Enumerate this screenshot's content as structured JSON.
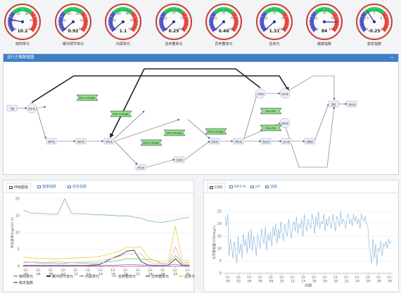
{
  "gauges": [
    {
      "label": "吸附单元",
      "value_text": "10.2",
      "value": 10.2,
      "max": 50,
      "ticks": [
        "10",
        "20",
        "30",
        "40",
        "0",
        "50"
      ]
    },
    {
      "label": "缓冲调节单元",
      "value_text": "0.92",
      "value": 0.92,
      "max": 50,
      "ticks": [
        "10",
        "20",
        "30",
        "40",
        "0",
        "50"
      ]
    },
    {
      "label": "内源单元",
      "value_text": "1.1",
      "value": 1.1,
      "max": 50,
      "ticks": [
        "10",
        "20",
        "30",
        "40",
        "0",
        "50"
      ]
    },
    {
      "label": "自养菌单元",
      "value_text": "0.25",
      "value": 0.25,
      "max": 100,
      "ticks": [
        "25",
        "50",
        "75",
        "0",
        "100"
      ]
    },
    {
      "label": "异养菌单元",
      "value_text": "0.46",
      "value": 0.46,
      "max": 100,
      "ticks": [
        "25",
        "50",
        "75",
        "0",
        "100"
      ]
    },
    {
      "label": "总单元",
      "value_text": "1.31",
      "value": 1.31,
      "max": 100,
      "ticks": [
        "25",
        "50",
        "75",
        "0",
        "100"
      ]
    },
    {
      "label": "健康指数",
      "value_text": "84",
      "value": 84,
      "max": 100,
      "ticks": [
        "25",
        "50",
        "75",
        "0",
        "100"
      ]
    },
    {
      "label": "稳定指数",
      "value_text": "-0.25",
      "value": -0.25,
      "min": -1,
      "max": 1,
      "ticks": [
        "-0.5",
        "0",
        "0.5",
        "-1",
        "1"
      ]
    }
  ],
  "colors": {
    "gauge_red": "#e8433a",
    "gauge_green": "#22c35a",
    "gauge_blue": "#4f55c7",
    "header": "#3f7fc6"
  },
  "process": {
    "title": "运行方案数据图",
    "minimize": "−",
    "nodes": [
      {
        "id": "n1",
        "label": "气源",
        "kind": "box"
      },
      {
        "id": "n2",
        "label": "进水池",
        "kind": "circle"
      },
      {
        "id": "n3",
        "label": "调节池",
        "kind": "box"
      },
      {
        "id": "n4",
        "label": "缺氧池",
        "kind": "box"
      },
      {
        "id": "n5",
        "label": "厌氧池",
        "kind": "box"
      },
      {
        "id": "n6",
        "label": "好氧池",
        "kind": "box"
      },
      {
        "id": "n7",
        "label": "沉淀池",
        "kind": "box"
      },
      {
        "id": "n8",
        "label": "回流池",
        "kind": "box"
      },
      {
        "id": "n9",
        "label": "好氧池",
        "kind": "box"
      },
      {
        "id": "n10",
        "label": "混合池",
        "kind": "box"
      },
      {
        "id": "n11",
        "label": "出水池",
        "kind": "box"
      },
      {
        "id": "n12",
        "label": "污泥池",
        "kind": "circle"
      },
      {
        "id": "n13",
        "label": "出水池",
        "kind": "circle"
      },
      {
        "id": "n14",
        "label": "消毒池",
        "kind": "circle"
      },
      {
        "id": "n15",
        "label": "排放",
        "kind": "box"
      },
      {
        "id": "n16",
        "label": "清水池",
        "kind": "box"
      },
      {
        "id": "n17",
        "label": "鼓风机",
        "kind": "box"
      },
      {
        "id": "n18",
        "label": "提升泵",
        "kind": "box"
      },
      {
        "id": "n19",
        "label": "浓缩池",
        "kind": "box"
      },
      {
        "id": "n20",
        "label": "外排",
        "kind": "box"
      }
    ],
    "tags": [
      {
        "label": "DO=1.0mg/L"
      },
      {
        "label": "DO=1.0mg/L"
      },
      {
        "label": "DO=2.4mg/L"
      },
      {
        "label": "DO=2.4mg/L"
      },
      {
        "label": "DO=2.4mg/L"
      },
      {
        "label": "N=0.4%"
      },
      {
        "label": "N=0.4%"
      }
    ]
  },
  "left_panel": {
    "tabs": [
      {
        "label": "呼吸图谱",
        "active": true
      },
      {
        "label": "健康指数",
        "active": false
      },
      {
        "label": "稳定指数",
        "active": false
      }
    ],
    "chart_data": {
      "type": "line",
      "ylabel": "呼吸速率(mgO2/L.h)",
      "ylim": [
        0,
        20
      ],
      "yticks": [
        "0",
        "5",
        "10",
        "15",
        "20"
      ],
      "x_labels": [
        [
          "12-",
          "04"
        ],
        [
          "12-",
          "06"
        ],
        [
          "12-",
          "08"
        ],
        [
          "12-",
          "10"
        ],
        [
          "12-",
          "12"
        ],
        [
          "12-",
          "14"
        ],
        [
          "12-",
          "16"
        ],
        [
          "12-",
          "18"
        ],
        [
          "12-",
          "20"
        ],
        [
          "12-",
          "22"
        ],
        [
          "12-",
          "24"
        ],
        [
          "12-",
          "26"
        ],
        [
          "12-",
          "28"
        ],
        [
          "12-",
          "30"
        ]
      ],
      "series": [
        {
          "name": "吸附单元",
          "color": "#8ab8d8",
          "values": [
            16.8,
            15.8,
            15.7,
            15.6,
            15.4,
            15.5,
            20,
            15.7,
            15.6,
            15.5,
            15.4,
            15.3,
            15.2,
            15.1,
            14.9,
            15,
            14.6,
            14.3,
            13.5,
            13.2,
            13,
            13.3,
            13.8,
            14.2,
            14.5
          ]
        },
        {
          "name": "缓冲调节单元",
          "color": "#333333",
          "values": [
            0.3,
            0.3,
            0.3,
            0.3,
            0.3,
            0.3,
            0.3,
            0.3,
            0.3,
            0.3,
            0.4,
            0.5,
            1.5,
            2.5,
            3.3,
            4.5,
            4.8,
            1.5,
            0.4,
            0.3,
            0.3,
            0.4,
            2.2,
            0.3,
            0.3
          ]
        },
        {
          "name": "内源单元",
          "color": "#7bc96f",
          "values": [
            1,
            1.2,
            1,
            0.9,
            1,
            0.8,
            0.9,
            1.1,
            1,
            0.9,
            0.9,
            1,
            1.2,
            1.5,
            1.8,
            2.3,
            2.2,
            2.1,
            2,
            1.8,
            0.8,
            1,
            3.2,
            1,
            1.1
          ]
        },
        {
          "name": "自养菌单元",
          "color": "#e9b3c9",
          "values": [
            1.5,
            1.2,
            1.3,
            1.1,
            1.2,
            1.4,
            1.2,
            1.1,
            1.2,
            1.3,
            1.4,
            1.6,
            2,
            2.4,
            3,
            3.8,
            3.6,
            3.8,
            1.5,
            0.8,
            0.9,
            1,
            5.8,
            0.5,
            0.6
          ]
        },
        {
          "name": "异养菌单元",
          "color": "#9b7fc9",
          "values": [
            0.2,
            0.2,
            0.2,
            0.2,
            0.2,
            0.2,
            0.2,
            0.2,
            0.2,
            0.2,
            0.2,
            0.2,
            0.3,
            0.3,
            0.4,
            0.5,
            0.5,
            0.4,
            0.3,
            0.2,
            0.2,
            0.3,
            0.6,
            0.2,
            0.2
          ]
        },
        {
          "name": "总单元",
          "color": "#e8d84b",
          "values": [
            2.8,
            2.5,
            2.4,
            2.2,
            2.3,
            2.2,
            2.3,
            2.4,
            2.5,
            2.6,
            2.7,
            2.9,
            3.4,
            4,
            4.6,
            5.8,
            5.5,
            5.8,
            2.8,
            1.6,
            1.5,
            1.8,
            12,
            1.6,
            1.7
          ]
        },
        {
          "name": "稳定指数",
          "color": "#d4709e",
          "values": [
            0,
            0,
            0,
            0,
            0,
            0,
            0,
            0,
            0,
            0,
            0,
            0,
            0,
            0,
            0,
            0,
            0,
            0,
            0,
            0,
            0,
            0,
            0,
            0,
            0
          ]
        }
      ]
    }
  },
  "right_panel": {
    "tabs": [
      {
        "label": "COD",
        "active": true
      },
      {
        "label": "NH3-N",
        "active": false
      },
      {
        "label": "pH",
        "active": false
      },
      {
        "label": "浊度",
        "active": false
      }
    ],
    "chart_data": {
      "type": "line",
      "ylabel": "化学需氧量COD(mg/L)",
      "xlabel": "日期",
      "ylim": [
        0,
        25
      ],
      "yticks": [
        "0",
        "5",
        "10",
        "15",
        "20",
        "25"
      ],
      "x_labels": [
        [
          "11-",
          "30"
        ],
        [
          "12-",
          "02"
        ],
        [
          "12-",
          "04"
        ],
        [
          "12-",
          "06"
        ],
        [
          "12-",
          "08"
        ],
        [
          "12-",
          "10"
        ],
        [
          "12-",
          "12"
        ],
        [
          "12-",
          "14"
        ],
        [
          "12-",
          "16"
        ],
        [
          "12-",
          "18"
        ],
        [
          "12-",
          "20"
        ],
        [
          "12-",
          "22"
        ],
        [
          "12-",
          "24"
        ],
        [
          "12-",
          "26"
        ],
        [
          "12-",
          "28"
        ],
        [
          "12-",
          "30"
        ]
      ],
      "series": [
        {
          "name": "COD",
          "color": "#7fb2dc",
          "values": [
            23,
            19,
            24,
            7,
            14,
            11,
            6,
            13,
            9,
            4,
            15,
            8,
            12,
            6,
            16,
            11,
            14,
            8,
            17,
            10,
            18,
            9,
            15,
            12,
            7,
            16,
            13,
            10,
            18,
            14,
            12,
            19,
            9,
            16,
            13,
            17,
            11,
            19,
            15,
            20,
            12,
            18,
            14,
            21,
            16,
            13,
            20,
            17,
            15,
            22,
            18,
            14,
            19,
            21,
            17,
            23,
            16,
            20,
            18,
            22,
            15,
            24,
            19,
            17,
            22,
            20,
            18,
            24,
            21,
            16,
            23,
            19,
            25,
            18,
            21,
            20,
            24,
            17,
            22,
            19,
            23,
            20,
            18,
            24,
            21,
            17,
            23,
            22,
            19,
            25,
            20,
            22,
            21,
            18,
            23,
            24,
            20,
            22,
            19,
            24,
            21,
            23,
            20,
            22,
            18,
            24,
            22,
            21,
            23,
            20,
            19,
            11,
            8,
            4,
            14,
            6,
            12,
            3,
            10,
            9,
            13,
            7,
            12,
            11,
            13,
            10,
            14,
            12,
            13
          ]
        }
      ]
    }
  }
}
